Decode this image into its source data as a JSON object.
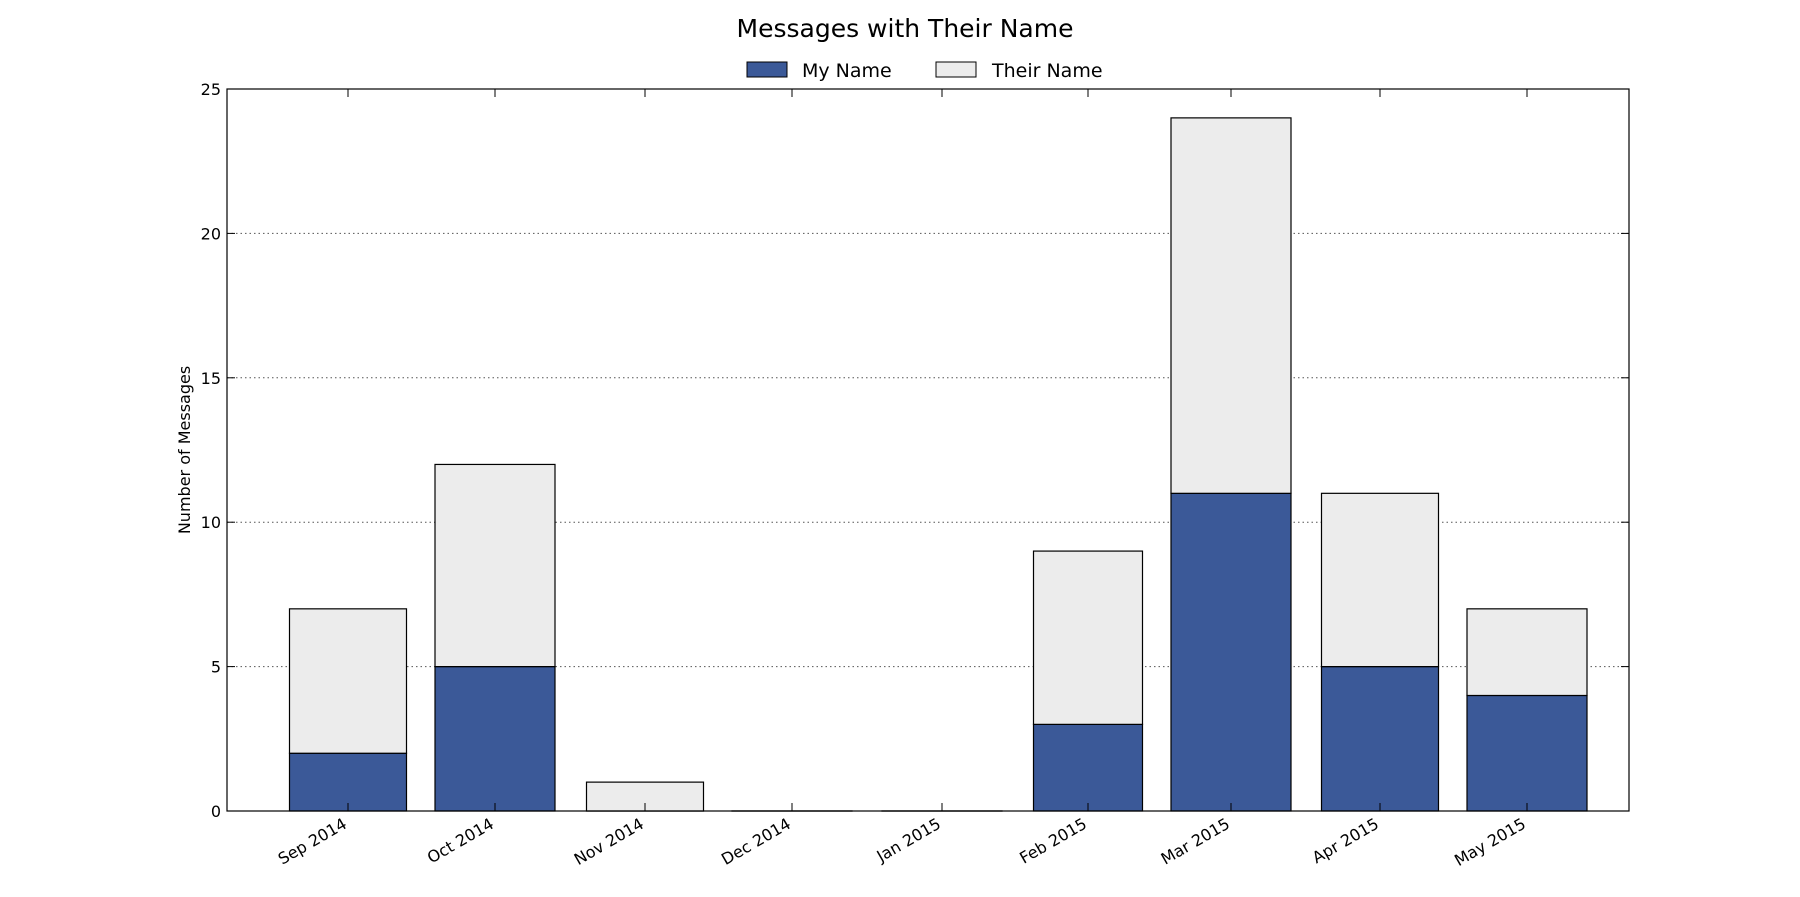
{
  "chart_data": {
    "type": "bar",
    "stacked": true,
    "title": "Messages with Their Name",
    "xlabel": "",
    "ylabel": "Number of Messages",
    "ylim": [
      0,
      25
    ],
    "yticks": [
      "0",
      "5",
      "10",
      "15",
      "20",
      "25"
    ],
    "grid": "y-dotted",
    "legend_position": "top-center",
    "categories": [
      "Sep 2014",
      "Oct 2014",
      "Nov 2014",
      "Dec 2014",
      "Jan 2015",
      "Feb 2015",
      "Mar 2015",
      "Apr 2015",
      "May 2015"
    ],
    "series": [
      {
        "name": "My Name",
        "color": "#3b5998",
        "values": [
          2,
          5,
          0,
          0,
          0,
          3,
          11,
          5,
          4
        ]
      },
      {
        "name": "Their Name",
        "color": "#ececec",
        "values": [
          5,
          7,
          1,
          0,
          0,
          6,
          13,
          6,
          3
        ]
      }
    ]
  }
}
